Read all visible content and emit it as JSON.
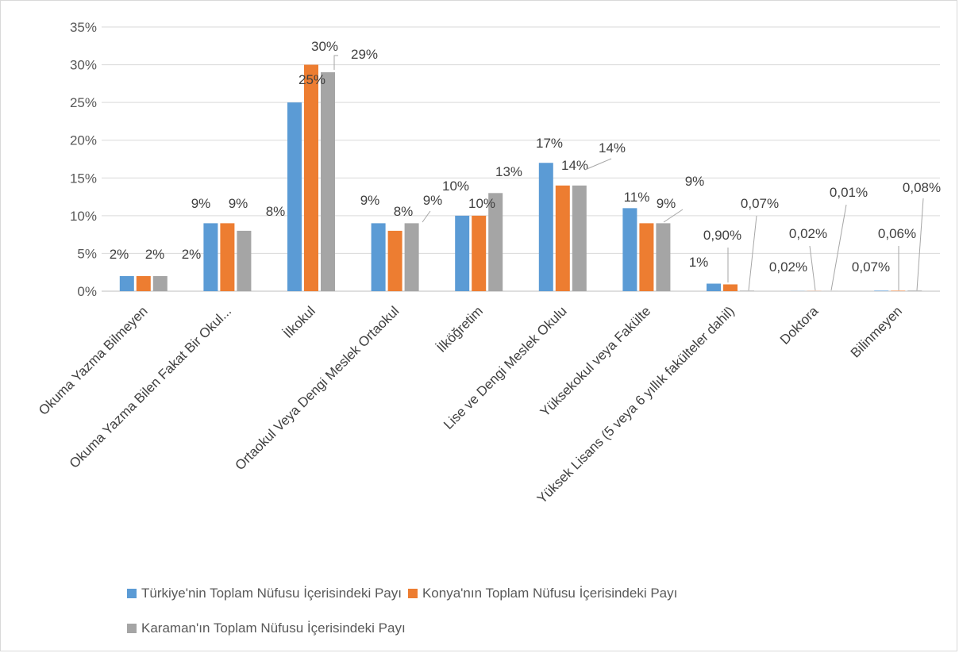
{
  "chart_data": {
    "type": "bar",
    "title": "",
    "xlabel": "",
    "ylabel": "",
    "ylim": [
      0,
      0.35
    ],
    "yticks": [
      "0%",
      "5%",
      "10%",
      "15%",
      "20%",
      "25%",
      "30%",
      "35%"
    ],
    "grid": true,
    "legend_position": "bottom",
    "categories": [
      "Okuma Yazma Bilmeyen",
      "Okuma Yazma Bilen Fakat Bir Okul...",
      "İlkokul",
      "Ortaokul Veya Dengi Meslek Ortaokul",
      "İlköğretim",
      "Lise ve Dengi Meslek Okulu",
      "Yüksekokul veya Fakülte",
      "Yüksek Lisans (5 veya 6 yıllık fakülteler dahil)",
      "Doktora",
      "Bilinmeyen"
    ],
    "series": [
      {
        "name": "Türkiye'nin Toplam Nüfusu İçerisindeki Payı",
        "color": "#5b9bd5",
        "values": [
          0.02,
          0.09,
          0.25,
          0.09,
          0.1,
          0.17,
          0.11,
          0.01,
          0.0002,
          0.0007
        ],
        "labels": [
          "2%",
          "9%",
          "25%",
          "9%",
          "10%",
          "17%",
          "11%",
          "1%",
          "0,02%",
          "0,07%"
        ]
      },
      {
        "name": "Konya'nın Toplam Nüfusu İçerisindeki Payı",
        "color": "#ed7d31",
        "values": [
          0.02,
          0.09,
          0.3,
          0.08,
          0.1,
          0.14,
          0.09,
          0.009,
          0.0002,
          0.0006
        ],
        "labels": [
          "2%",
          "9%",
          "30%",
          "8%",
          "10%",
          "14%",
          "9%",
          "0,90%",
          "0,02%",
          "0,06%"
        ]
      },
      {
        "name": "Karaman'ın Toplam Nüfusu İçerisindeki Payı",
        "color": "#a5a5a5",
        "values": [
          0.02,
          0.08,
          0.29,
          0.09,
          0.13,
          0.14,
          0.09,
          0.0007,
          0.0001,
          0.0008
        ],
        "labels": [
          "2%",
          "8%",
          "29%",
          "9%",
          "13%",
          "14%",
          "9%",
          "0,07%",
          "0,01%",
          "0,08%"
        ]
      }
    ]
  }
}
